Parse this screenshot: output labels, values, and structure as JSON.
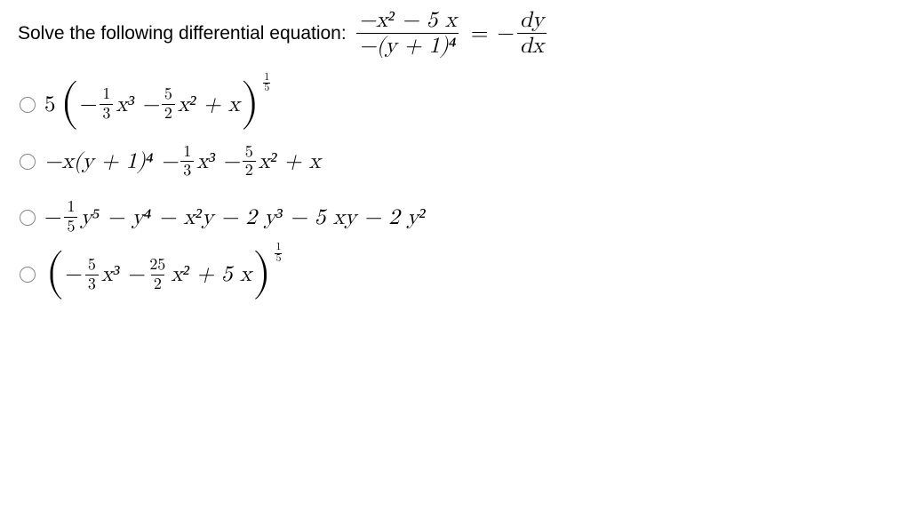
{
  "prompt": {
    "label": "Solve the following differential equation:",
    "equation": {
      "lhs_num": "−x² − 5 x",
      "lhs_den": "−(y + 1)⁴",
      "rhs_num": "dy",
      "rhs_den": "dx",
      "eq_text": "=",
      "rhs_sign": "−"
    }
  },
  "options": [
    {
      "id": "a",
      "lead": "5",
      "body_parts": [
        "−",
        "1",
        "3",
        " x³ − ",
        "5",
        "2",
        " x² + x"
      ],
      "exp": [
        "1",
        "5"
      ]
    },
    {
      "id": "b",
      "body_parts": [
        "−x(y + 1)⁴ − ",
        "1",
        "3",
        " x³ − ",
        "5",
        "2",
        " x² + x"
      ]
    },
    {
      "id": "c",
      "body_parts": [
        "−",
        "1",
        "5",
        " y⁵ − y⁴ − x²y − 2 y³ − 5 xy − 2 y²"
      ]
    },
    {
      "id": "d",
      "body_parts": [
        "−",
        "5",
        "3",
        " x³ − ",
        "25",
        "2",
        " x² + 5 x"
      ],
      "exp": [
        "1",
        "5"
      ]
    }
  ],
  "style": {
    "text_color": "#000000",
    "radio_border": "#888888",
    "bg": "#ffffff"
  }
}
